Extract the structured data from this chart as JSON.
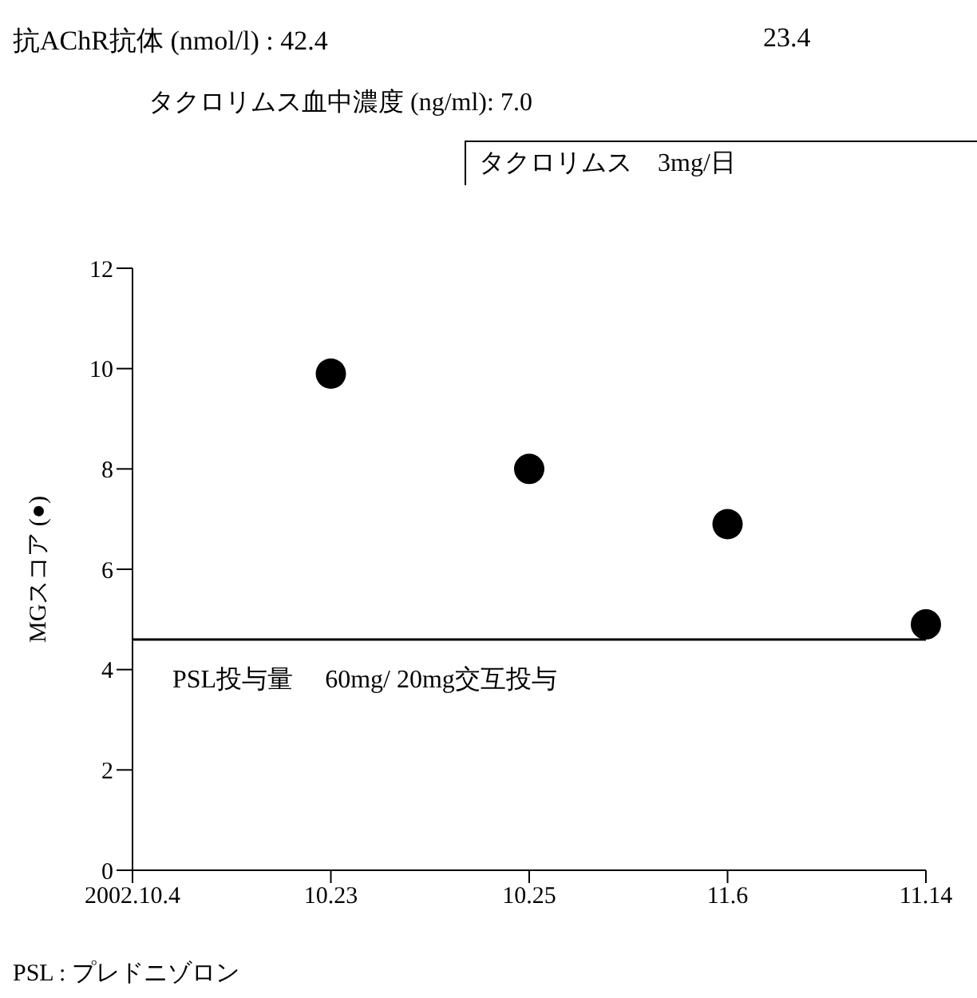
{
  "chart_data": {
    "type": "scatter",
    "ylabel": "MGスコア (●)",
    "categories": [
      "2002.10.4",
      "10.23",
      "10.25",
      "11.6",
      "11.14"
    ],
    "series": [
      {
        "color": "#000000",
        "values": [
          null,
          9.9,
          8,
          6.9,
          4.9
        ]
      }
    ],
    "ylim": [
      0,
      12
    ],
    "yticks": [
      0,
      2,
      4,
      6,
      8,
      10,
      12
    ],
    "grid": false,
    "legend": false,
    "marker": "circle",
    "ref_lines": [
      {
        "axis": "y",
        "value": 4.6,
        "label": "PSL投与量　 60mg/ 20mg交互投与",
        "color": "#000000"
      }
    ],
    "annotations": [
      "抗AChR抗体 (nmol/l) : 42.4",
      "23.4",
      "タクロリムス血中濃度 (ng/ml):  7.0",
      "タクロリムス　3mg/日",
      "PSL : プレドニゾロン"
    ]
  }
}
